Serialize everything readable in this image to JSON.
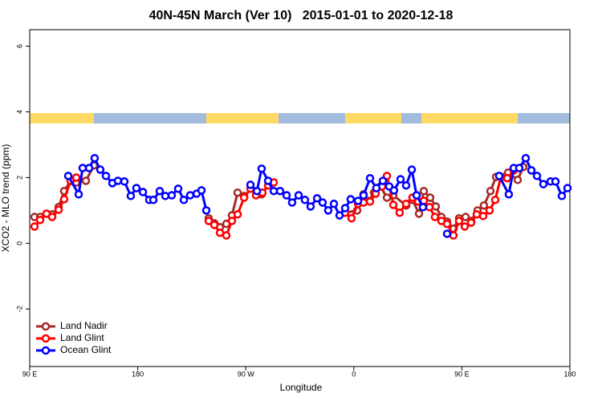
{
  "chart_data": {
    "type": "line",
    "title": "40N-45N March (Ver 10)   2015-01-01 to 2020-12-18",
    "x_label": "Longitude",
    "y_label": "XCO2 - MLO trend (ppm)",
    "xlim": [
      90,
      540
    ],
    "ylim": [
      -3.75,
      6.5
    ],
    "xticks": [
      {
        "value": 90,
        "label": "90 E"
      },
      {
        "value": 180,
        "label": "180"
      },
      {
        "value": 270,
        "label": "90 W"
      },
      {
        "value": 360,
        "label": "0"
      },
      {
        "value": 450,
        "label": "90 E"
      },
      {
        "value": 540,
        "label": "180"
      }
    ],
    "yticks": [
      -2,
      0,
      2,
      4,
      6
    ],
    "legend": "bottom-left",
    "series": [
      {
        "name": "Land Nadir",
        "color": "#a52a2a",
        "x": [
          94.0,
          98.7,
          104.0,
          108.7,
          114.1,
          118.7,
          124.1,
          128.8,
          136.8,
          143.5,
          null,
          239.1,
          243.8,
          248.5,
          253.8,
          258.5,
          263.2,
          268.6,
          null,
          283.2,
          null,
          352.8,
          362.8,
          368.1,
          372.8,
          376.8,
          382.2,
          387.6,
          392.9,
          403.6,
          408.9,
          414.3,
          418.3,
          423.6,
          428.3,
          433.0,
          437.7,
          443.0,
          447.7,
          453.1,
          457.7,
          463.1,
          468.4,
          473.8,
          478.5,
          488.5,
          496.5,
          501.2
        ],
        "values": [
          0.8,
          0.8,
          0.9,
          0.88,
          1.1,
          1.59,
          1.9,
          1.85,
          1.9,
          2.37,
          null,
          0.76,
          0.61,
          0.49,
          0.59,
          0.85,
          1.54,
          1.44,
          null,
          1.49,
          null,
          0.93,
          1.0,
          1.49,
          1.29,
          1.54,
          1.73,
          1.39,
          1.46,
          1.15,
          1.32,
          0.9,
          1.59,
          1.39,
          1.12,
          0.8,
          0.66,
          0.44,
          0.76,
          0.8,
          0.68,
          1.0,
          1.15,
          1.59,
          2.02,
          2.15,
          1.93,
          2.32
        ]
      },
      {
        "name": "Land Glint",
        "color": "#ff0000",
        "x": [
          94.0,
          98.7,
          104.0,
          108.7,
          114.1,
          118.7,
          124.1,
          128.8,
          null,
          239.1,
          243.8,
          248.5,
          253.8,
          258.5,
          263.2,
          268.6,
          273.9,
          278.5,
          283.9,
          288.6,
          293.3,
          null,
          352.8,
          358.1,
          363.5,
          368.1,
          373.5,
          378.2,
          383.5,
          387.6,
          392.9,
          398.2,
          403.6,
          408.9,
          413.6,
          418.3,
          423.0,
          427.6,
          433.0,
          437.7,
          443.0,
          447.7,
          452.4,
          457.7,
          462.4,
          467.8,
          473.1,
          477.8,
          482.5,
          487.8,
          493.2
        ],
        "values": [
          0.51,
          0.71,
          0.9,
          0.8,
          1.02,
          1.34,
          1.9,
          2.0,
          null,
          0.68,
          0.56,
          0.32,
          0.24,
          0.68,
          0.88,
          1.39,
          1.66,
          1.46,
          1.54,
          1.76,
          1.85,
          null,
          0.93,
          0.76,
          1.2,
          1.24,
          1.27,
          1.51,
          1.73,
          2.05,
          1.17,
          0.93,
          1.2,
          1.39,
          1.27,
          1.29,
          1.1,
          0.8,
          0.68,
          0.59,
          0.24,
          0.68,
          0.51,
          0.63,
          0.88,
          0.83,
          1.0,
          1.32,
          2.02,
          1.98,
          2.22
        ]
      },
      {
        "name": "Ocean Glint",
        "color": "#0000ff",
        "x": [
          122.1,
          130.8,
          134.1,
          139.5,
          144.1,
          148.8,
          153.5,
          158.9,
          163.5,
          168.9,
          174.2,
          178.9,
          184.3,
          189.6,
          193.0,
          198.3,
          203.0,
          208.3,
          213.7,
          218.4,
          223.7,
          229.1,
          233.1,
          237.1,
          null,
          273.9,
          279.3,
          283.2,
          288.6,
          293.3,
          298.6,
          304.0,
          308.6,
          314.0,
          319.3,
          324.0,
          329.4,
          334.0,
          338.7,
          343.4,
          348.1,
          352.8,
          357.4,
          363.5,
          368.1,
          373.5,
          378.8,
          384.2,
          389.5,
          393.5,
          398.9,
          403.6,
          408.3,
          412.3,
          417.6,
          null,
          437.7,
          null,
          481.1,
          489.1,
          493.2,
          497.8,
          503.2,
          507.9,
          512.6,
          517.9,
          523.9,
          528.0,
          533.3,
          538.0
        ],
        "values": [
          2.05,
          1.49,
          2.29,
          2.29,
          2.59,
          2.24,
          2.05,
          1.83,
          1.9,
          1.88,
          1.44,
          1.68,
          1.56,
          1.32,
          1.32,
          1.59,
          1.44,
          1.46,
          1.66,
          1.32,
          1.46,
          1.51,
          1.61,
          1.0,
          null,
          1.78,
          1.59,
          2.27,
          1.9,
          1.59,
          1.59,
          1.46,
          1.24,
          1.46,
          1.32,
          1.12,
          1.37,
          1.24,
          1.0,
          1.2,
          0.85,
          1.07,
          1.34,
          1.29,
          1.46,
          1.98,
          1.68,
          1.9,
          1.73,
          1.61,
          1.95,
          1.76,
          2.24,
          1.46,
          1.1,
          null,
          0.29,
          null,
          2.05,
          1.49,
          2.29,
          2.29,
          2.59,
          2.22,
          2.05,
          1.8,
          1.88,
          1.88,
          1.44,
          1.68
        ]
      }
    ]
  }
}
